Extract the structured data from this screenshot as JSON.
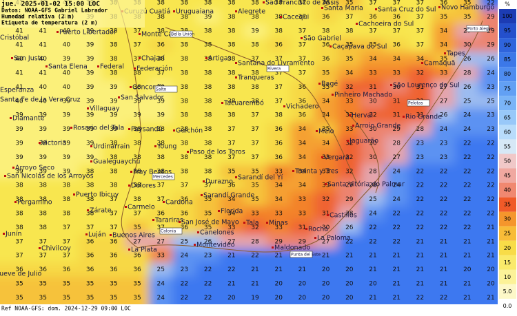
{
  "header": {
    "line1": "jue. 2025-01-02 15:00 LOC",
    "line2": "Datos: NOAA-GFS Gabriel Labrador",
    "line3": "Humedad relativa (2 m)",
    "line4": "Etiqueta de temperatura (2 m)"
  },
  "footer": "Ref NOAA-GFS: dom. 2024-12-29 09:00 LOC",
  "colorbar": {
    "unit": "%",
    "items": [
      {
        "label": "100",
        "color": "#1c3cb4"
      },
      {
        "label": "95",
        "color": "#2450cc"
      },
      {
        "label": "90",
        "color": "#2f64dc"
      },
      {
        "label": "85",
        "color": "#3c78e8"
      },
      {
        "label": "80",
        "color": "#4e8cf0"
      },
      {
        "label": "75",
        "color": "#62a0f4"
      },
      {
        "label": "70",
        "color": "#7ab4f7"
      },
      {
        "label": "65",
        "color": "#98c8f9"
      },
      {
        "label": "60",
        "color": "#b8dcfb"
      },
      {
        "label": "55",
        "color": "#d6e8f6"
      },
      {
        "label": "50",
        "color": "#f0c8c8"
      },
      {
        "label": "45",
        "color": "#f0a8a0"
      },
      {
        "label": "40",
        "color": "#f08870"
      },
      {
        "label": "35",
        "color": "#f05a28"
      },
      {
        "label": "30",
        "color": "#f5962c"
      },
      {
        "label": "25",
        "color": "#f8bc38"
      },
      {
        "label": "20",
        "color": "#f8dc48"
      },
      {
        "label": "15",
        "color": "#faea6a"
      },
      {
        "label": "10",
        "color": "#fcf298"
      },
      {
        "label": "5.0",
        "color": "#fdf8c8"
      },
      {
        "label": "0.0",
        "color": "#ffffff"
      }
    ]
  },
  "grid": {
    "rows": [
      [
        41,
        40,
        40,
        39,
        38,
        38,
        38,
        38,
        38,
        38,
        38,
        38,
        37,
        36,
        35,
        37,
        37,
        37,
        36,
        35,
        22
      ],
      [
        41,
        40,
        40,
        39,
        38,
        38,
        38,
        38,
        39,
        38,
        38,
        38,
        37,
        36,
        37,
        36,
        36,
        37,
        35,
        35,
        29
      ],
      [
        41,
        41,
        40,
        39,
        38,
        37,
        38,
        38,
        38,
        38,
        39,
        38,
        37,
        38,
        38,
        37,
        37,
        37,
        34,
        27,
        29
      ],
      [
        41,
        41,
        40,
        39,
        38,
        37,
        36,
        38,
        38,
        38,
        38,
        36,
        37,
        36,
        35,
        35,
        36,
        37,
        34,
        30,
        29
      ],
      [
        40,
        40,
        39,
        39,
        38,
        37,
        38,
        38,
        38,
        38,
        37,
        37,
        37,
        36,
        35,
        34,
        34,
        34,
        35,
        26,
        26
      ],
      [
        41,
        41,
        40,
        39,
        38,
        38,
        37,
        38,
        38,
        38,
        38,
        37,
        37,
        35,
        34,
        33,
        33,
        32,
        33,
        28,
        24
      ],
      [
        41,
        40,
        40,
        39,
        39,
        38,
        39,
        38,
        38,
        38,
        38,
        37,
        36,
        35,
        32,
        31,
        30,
        31,
        27,
        26,
        23
      ],
      [
        40,
        40,
        39,
        39,
        39,
        39,
        39,
        38,
        38,
        38,
        38,
        37,
        36,
        34,
        33,
        30,
        31,
        31,
        27,
        25,
        25
      ],
      [
        39,
        39,
        39,
        39,
        39,
        39,
        39,
        38,
        38,
        38,
        37,
        38,
        36,
        34,
        33,
        32,
        31,
        31,
        26,
        24,
        23
      ],
      [
        39,
        39,
        39,
        39,
        39,
        38,
        38,
        38,
        38,
        37,
        37,
        36,
        34,
        35,
        33,
        30,
        29,
        28,
        24,
        24,
        23
      ],
      [
        39,
        39,
        39,
        39,
        38,
        38,
        38,
        38,
        38,
        37,
        37,
        36,
        34,
        34,
        32,
        30,
        28,
        23,
        23,
        22,
        22
      ],
      [
        39,
        39,
        39,
        39,
        38,
        38,
        38,
        38,
        38,
        37,
        37,
        36,
        34,
        33,
        32,
        30,
        27,
        23,
        23,
        22,
        22
      ],
      [
        39,
        39,
        39,
        38,
        38,
        38,
        38,
        38,
        38,
        35,
        35,
        33,
        34,
        33,
        32,
        28,
        24,
        22,
        22,
        22,
        22
      ],
      [
        38,
        38,
        38,
        38,
        38,
        38,
        37,
        37,
        37,
        36,
        35,
        34,
        34,
        33,
        29,
        28,
        24,
        22,
        22,
        22,
        22
      ],
      [
        38,
        38,
        38,
        38,
        37,
        38,
        37,
        36,
        35,
        34,
        35,
        34,
        33,
        32,
        29,
        25,
        24,
        22,
        22,
        22,
        22
      ],
      [
        38,
        38,
        38,
        38,
        37,
        37,
        36,
        36,
        35,
        34,
        33,
        33,
        33,
        31,
        28,
        24,
        22,
        22,
        22,
        22,
        22
      ],
      [
        38,
        38,
        37,
        37,
        37,
        35,
        37,
        36,
        35,
        33,
        32,
        33,
        31,
        30,
        26,
        22,
        22,
        22,
        22,
        22,
        21
      ],
      [
        37,
        37,
        37,
        36,
        36,
        27,
        27,
        25,
        26,
        27,
        28,
        29,
        29,
        27,
        22,
        22,
        22,
        21,
        21,
        21,
        21
      ],
      [
        37,
        37,
        37,
        36,
        36,
        36,
        33,
        24,
        23,
        21,
        22,
        21,
        20,
        21,
        21,
        21,
        21,
        21,
        21,
        21,
        21
      ],
      [
        36,
        36,
        36,
        36,
        36,
        36,
        25,
        23,
        22,
        22,
        21,
        21,
        21,
        20,
        20,
        21,
        21,
        21,
        21,
        20,
        20
      ],
      [
        35,
        35,
        35,
        35,
        35,
        35,
        24,
        22,
        22,
        21,
        21,
        20,
        20,
        20,
        20,
        20,
        21,
        21,
        21,
        21,
        20
      ],
      [
        35,
        35,
        35,
        35,
        35,
        35,
        24,
        22,
        22,
        20,
        19,
        20,
        20,
        20,
        20,
        21,
        21,
        22,
        22,
        21,
        21
      ]
    ]
  },
  "places": [
    "Cristóbal",
    "Puerto Libertador",
    "Curuzú Cuatiá",
    "Uruguaiana",
    "Alegrete",
    "São Francisco de Assis",
    "Cacequi",
    "Santa Maria",
    "Santa Cruz do Sul",
    "Novo Hamburgo",
    "Cachoeira do Sul",
    "Monte Caseros",
    "Bella Unión",
    "Porto Alegre",
    "São Gabriel",
    "Caçapava do Sul",
    "San Justo",
    "Chajarí",
    "Artigas",
    "Santana do Livramento",
    "Camaquã",
    "Santa Elena",
    "Federal",
    "Federación",
    "Rivera",
    "Tapes",
    "Esperanza",
    "Concordia",
    "Salto",
    "Tranqueras",
    "Bagé",
    "Pinheiro Machado",
    "São Lourenço do Sul",
    "Santa Fe de la Vera Cruz",
    "San Salvador",
    "Tacuarembó",
    "Vichadero",
    "Pelotas",
    "Villaguay",
    "Herval",
    "Rio Grande",
    "Diamante",
    "Rosario del Tala",
    "Paysandú",
    "Guichón",
    "Arroio Grande",
    "Melo",
    "Jaguarão",
    "Victoria",
    "Urdinarrain",
    "Young",
    "Paso de los Toros",
    "Gualeguaychú",
    "Vergara",
    "Arroyo Seco",
    "Fray Bentos",
    "Mercedes",
    "Treinta y Tres",
    "San Nicolás de los Arroyos",
    "Sarandí del Yí",
    "Durazno",
    "Santa Vitória do Palmar",
    "Dolores",
    "Puerto Ibicuy",
    "Sarandí Grande",
    "Pergamino",
    "Cardona",
    "Zárate",
    "Carmelo",
    "Florida",
    "Castillos",
    "Tarariras",
    "San José de Mayo",
    "Tala",
    "Minas",
    "Rocha",
    "Colonia",
    "Canelones",
    "Junín",
    "Luján",
    "Buenos Aires",
    "La Paloma",
    "Maldonado",
    "Montevideo",
    "Chivilcoy",
    "La Plata",
    "Punta del Este",
    "Nueve de Julio"
  ]
}
